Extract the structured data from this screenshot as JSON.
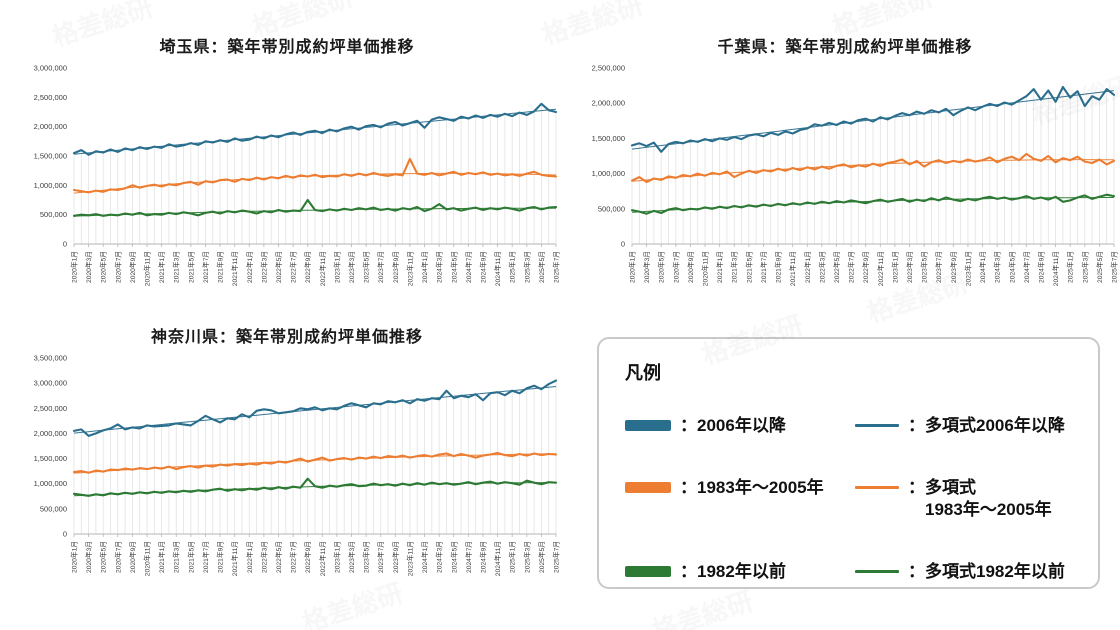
{
  "page": {
    "watermark_text": "格差総研"
  },
  "colors": {
    "blue": "#2a6e8e",
    "orange": "#ec7d31",
    "green": "#2d7a34",
    "dropline": "#e2e2e2",
    "axis": "#b5b5b5",
    "tick_label": "#3c3c3c"
  },
  "legend": {
    "title": "凡例",
    "items": [
      {
        "swatch": "thick",
        "color_key": "blue",
        "label": "：2006年以降"
      },
      {
        "swatch": "thin",
        "color_key": "blue",
        "label": "：多項式2006年以降"
      },
      {
        "swatch": "thick",
        "color_key": "orange",
        "label": "：1983年〜2005年"
      },
      {
        "swatch": "thin",
        "color_key": "orange",
        "label": "：多項式",
        "label2": "1983年〜2005年"
      },
      {
        "swatch": "thick",
        "color_key": "green",
        "label": "：1982年以前"
      },
      {
        "swatch": "thin",
        "color_key": "green",
        "label": "：多項式1982年以前"
      }
    ]
  },
  "chart_data": [
    {
      "type": "line",
      "title": "埼玉県：築年帯別成約坪単価推移",
      "ylabel": "",
      "xlabel": "",
      "ylim": [
        0,
        3000000
      ],
      "ytick_step": 500000,
      "grid": "droplines-vertical",
      "legend_position": "external-box",
      "x_labels": [
        "2020年1月",
        "2020年3月",
        "2020年5月",
        "2020年7月",
        "2020年9月",
        "2020年11月",
        "2021年1月",
        "2021年3月",
        "2021年5月",
        "2021年7月",
        "2021年9月",
        "2021年11月",
        "2022年1月",
        "2022年3月",
        "2022年5月",
        "2022年7月",
        "2022年9月",
        "2022年11月",
        "2023年1月",
        "2023年3月",
        "2023年5月",
        "2023年7月",
        "2023年9月",
        "2023年11月",
        "2024年1月",
        "2024年3月",
        "2024年5月",
        "2024年7月",
        "2024年9月",
        "2024年11月",
        "2025年1月",
        "2025年3月",
        "2025年5月",
        "2025年7月"
      ],
      "series": [
        {
          "name": "2006年以降",
          "color_key": "blue",
          "values": [
            1550000,
            1600000,
            1520000,
            1580000,
            1560000,
            1610000,
            1570000,
            1630000,
            1600000,
            1650000,
            1620000,
            1660000,
            1640000,
            1700000,
            1660000,
            1680000,
            1720000,
            1690000,
            1750000,
            1730000,
            1770000,
            1740000,
            1800000,
            1760000,
            1780000,
            1830000,
            1800000,
            1850000,
            1820000,
            1870000,
            1900000,
            1860000,
            1910000,
            1930000,
            1890000,
            1950000,
            1920000,
            1970000,
            2000000,
            1950000,
            2010000,
            2030000,
            1990000,
            2050000,
            2080000,
            2020000,
            2060000,
            2100000,
            1980000,
            2120000,
            2160000,
            2130000,
            2100000,
            2170000,
            2140000,
            2190000,
            2150000,
            2200000,
            2170000,
            2220000,
            2180000,
            2240000,
            2200000,
            2260000,
            2390000,
            2280000,
            2250000
          ]
        },
        {
          "name": "1983年〜2005年",
          "color_key": "orange",
          "values": [
            920000,
            900000,
            880000,
            910000,
            890000,
            930000,
            920000,
            950000,
            1000000,
            960000,
            990000,
            1010000,
            980000,
            1020000,
            1000000,
            1040000,
            1060000,
            1010000,
            1070000,
            1050000,
            1090000,
            1100000,
            1060000,
            1110000,
            1090000,
            1130000,
            1100000,
            1140000,
            1120000,
            1160000,
            1130000,
            1170000,
            1150000,
            1180000,
            1140000,
            1160000,
            1150000,
            1190000,
            1160000,
            1200000,
            1170000,
            1210000,
            1180000,
            1160000,
            1190000,
            1170000,
            1450000,
            1200000,
            1180000,
            1210000,
            1170000,
            1200000,
            1230000,
            1180000,
            1210000,
            1190000,
            1220000,
            1180000,
            1200000,
            1170000,
            1190000,
            1160000,
            1200000,
            1230000,
            1180000,
            1160000,
            1150000
          ]
        },
        {
          "name": "1982年以前",
          "color_key": "green",
          "values": [
            480000,
            500000,
            490000,
            510000,
            480000,
            500000,
            490000,
            520000,
            500000,
            530000,
            490000,
            510000,
            500000,
            530000,
            510000,
            540000,
            520000,
            490000,
            530000,
            550000,
            520000,
            560000,
            540000,
            570000,
            550000,
            520000,
            560000,
            540000,
            580000,
            550000,
            570000,
            560000,
            750000,
            580000,
            560000,
            590000,
            570000,
            600000,
            580000,
            610000,
            590000,
            620000,
            580000,
            600000,
            570000,
            610000,
            590000,
            630000,
            560000,
            600000,
            680000,
            590000,
            610000,
            570000,
            600000,
            620000,
            580000,
            610000,
            590000,
            620000,
            600000,
            570000,
            610000,
            630000,
            590000,
            620000,
            630000
          ]
        }
      ],
      "trend_series_names": [
        "多項式2006年以降",
        "多項式1983年〜2005年",
        "多項式1982年以前"
      ]
    },
    {
      "type": "line",
      "title": "千葉県：築年帯別成約坪単価推移",
      "ylabel": "",
      "xlabel": "",
      "ylim": [
        0,
        2500000
      ],
      "ytick_step": 500000,
      "grid": "droplines-vertical",
      "legend_position": "external-box",
      "x_labels": [
        "2020年1月",
        "2020年3月",
        "2020年5月",
        "2020年7月",
        "2020年9月",
        "2020年11月",
        "2021年1月",
        "2021年3月",
        "2021年5月",
        "2021年7月",
        "2021年9月",
        "2021年11月",
        "2022年1月",
        "2022年3月",
        "2022年5月",
        "2022年7月",
        "2022年9月",
        "2022年11月",
        "2023年1月",
        "2023年3月",
        "2023年5月",
        "2023年7月",
        "2023年9月",
        "2023年11月",
        "2024年1月",
        "2024年3月",
        "2024年5月",
        "2024年7月",
        "2024年9月",
        "2024年11月",
        "2025年1月",
        "2025年3月",
        "2025年5月",
        "2025年7月"
      ],
      "series": [
        {
          "name": "2006年以降",
          "color_key": "blue",
          "values": [
            1400000,
            1430000,
            1390000,
            1440000,
            1310000,
            1420000,
            1450000,
            1430000,
            1470000,
            1450000,
            1490000,
            1460000,
            1500000,
            1480000,
            1520000,
            1490000,
            1540000,
            1560000,
            1530000,
            1580000,
            1550000,
            1600000,
            1570000,
            1620000,
            1640000,
            1700000,
            1680000,
            1720000,
            1690000,
            1740000,
            1710000,
            1760000,
            1780000,
            1740000,
            1800000,
            1770000,
            1820000,
            1860000,
            1830000,
            1880000,
            1850000,
            1900000,
            1870000,
            1920000,
            1830000,
            1890000,
            1940000,
            1900000,
            1950000,
            1990000,
            1960000,
            2010000,
            1980000,
            2040000,
            2100000,
            2200000,
            2050000,
            2180000,
            2020000,
            2230000,
            2080000,
            2170000,
            1960000,
            2100000,
            2050000,
            2200000,
            2120000
          ]
        },
        {
          "name": "1983年〜2005年",
          "color_key": "orange",
          "values": [
            900000,
            950000,
            880000,
            930000,
            910000,
            960000,
            940000,
            980000,
            960000,
            1000000,
            970000,
            1010000,
            990000,
            1030000,
            950000,
            1000000,
            1040000,
            1010000,
            1050000,
            1030000,
            1070000,
            1040000,
            1080000,
            1050000,
            1090000,
            1060000,
            1100000,
            1070000,
            1110000,
            1130000,
            1090000,
            1120000,
            1100000,
            1140000,
            1110000,
            1150000,
            1170000,
            1200000,
            1130000,
            1180000,
            1100000,
            1160000,
            1190000,
            1150000,
            1180000,
            1160000,
            1200000,
            1170000,
            1190000,
            1230000,
            1160000,
            1210000,
            1240000,
            1190000,
            1280000,
            1210000,
            1180000,
            1250000,
            1160000,
            1220000,
            1190000,
            1240000,
            1170000,
            1150000,
            1200000,
            1130000,
            1180000
          ]
        },
        {
          "name": "1982年以前",
          "color_key": "green",
          "values": [
            480000,
            460000,
            430000,
            470000,
            440000,
            490000,
            510000,
            480000,
            500000,
            490000,
            520000,
            500000,
            530000,
            510000,
            540000,
            520000,
            550000,
            530000,
            560000,
            540000,
            570000,
            550000,
            580000,
            560000,
            590000,
            570000,
            600000,
            580000,
            610000,
            590000,
            620000,
            600000,
            580000,
            610000,
            630000,
            600000,
            620000,
            640000,
            600000,
            630000,
            610000,
            650000,
            620000,
            660000,
            630000,
            610000,
            640000,
            620000,
            650000,
            670000,
            640000,
            660000,
            630000,
            650000,
            680000,
            640000,
            660000,
            630000,
            670000,
            600000,
            620000,
            660000,
            690000,
            640000,
            670000,
            700000,
            680000
          ]
        }
      ],
      "trend_series_names": [
        "多項式2006年以降",
        "多項式1983年〜2005年",
        "多項式1982年以前"
      ]
    },
    {
      "type": "line",
      "title": "神奈川県：築年帯別成約坪単価推移",
      "ylabel": "",
      "xlabel": "",
      "ylim": [
        0,
        3500000
      ],
      "ytick_step": 500000,
      "grid": "droplines-vertical",
      "legend_position": "external-box",
      "x_labels": [
        "2020年1月",
        "2020年3月",
        "2020年5月",
        "2020年7月",
        "2020年9月",
        "2020年11月",
        "2021年1月",
        "2021年3月",
        "2021年5月",
        "2021年7月",
        "2021年9月",
        "2021年11月",
        "2022年1月",
        "2022年3月",
        "2022年5月",
        "2022年7月",
        "2022年9月",
        "2022年11月",
        "2023年1月",
        "2023年3月",
        "2023年5月",
        "2023年7月",
        "2023年9月",
        "2023年11月",
        "2024年1月",
        "2024年3月",
        "2024年5月",
        "2024年7月",
        "2024年9月",
        "2024年11月",
        "2025年1月",
        "2025年3月",
        "2025年5月",
        "2025年7月"
      ],
      "series": [
        {
          "name": "2006年以降",
          "color_key": "blue",
          "values": [
            2050000,
            2080000,
            1950000,
            2000000,
            2060000,
            2100000,
            2180000,
            2080000,
            2120000,
            2100000,
            2160000,
            2140000,
            2150000,
            2160000,
            2200000,
            2180000,
            2160000,
            2250000,
            2350000,
            2280000,
            2220000,
            2300000,
            2280000,
            2380000,
            2320000,
            2450000,
            2480000,
            2460000,
            2400000,
            2420000,
            2440000,
            2500000,
            2480000,
            2520000,
            2460000,
            2500000,
            2480000,
            2550000,
            2600000,
            2560000,
            2520000,
            2600000,
            2580000,
            2640000,
            2620000,
            2660000,
            2600000,
            2680000,
            2650000,
            2700000,
            2680000,
            2850000,
            2700000,
            2750000,
            2720000,
            2780000,
            2660000,
            2800000,
            2820000,
            2760000,
            2850000,
            2800000,
            2900000,
            2950000,
            2880000,
            2980000,
            3050000
          ]
        },
        {
          "name": "1983年〜2005年",
          "color_key": "orange",
          "values": [
            1230000,
            1250000,
            1220000,
            1260000,
            1240000,
            1280000,
            1270000,
            1300000,
            1280000,
            1310000,
            1290000,
            1320000,
            1300000,
            1340000,
            1290000,
            1330000,
            1350000,
            1320000,
            1360000,
            1340000,
            1380000,
            1360000,
            1390000,
            1370000,
            1400000,
            1380000,
            1420000,
            1400000,
            1440000,
            1420000,
            1460000,
            1500000,
            1440000,
            1480000,
            1520000,
            1460000,
            1490000,
            1510000,
            1480000,
            1520000,
            1500000,
            1540000,
            1510000,
            1550000,
            1530000,
            1560000,
            1520000,
            1550000,
            1570000,
            1540000,
            1580000,
            1600000,
            1550000,
            1590000,
            1560000,
            1520000,
            1560000,
            1580000,
            1610000,
            1570000,
            1550000,
            1590000,
            1560000,
            1600000,
            1570000,
            1590000,
            1580000
          ]
        },
        {
          "name": "1982年以前",
          "color_key": "green",
          "values": [
            800000,
            780000,
            760000,
            790000,
            770000,
            810000,
            790000,
            820000,
            800000,
            830000,
            810000,
            840000,
            820000,
            850000,
            830000,
            860000,
            840000,
            870000,
            850000,
            880000,
            900000,
            860000,
            890000,
            870000,
            900000,
            880000,
            920000,
            890000,
            930000,
            900000,
            940000,
            920000,
            1100000,
            950000,
            920000,
            960000,
            940000,
            970000,
            990000,
            950000,
            960000,
            1000000,
            970000,
            990000,
            960000,
            1000000,
            970000,
            1010000,
            980000,
            1020000,
            990000,
            1010000,
            980000,
            1000000,
            1030000,
            990000,
            1020000,
            1040000,
            1000000,
            1030000,
            1010000,
            980000,
            1060000,
            1020000,
            990000,
            1030000,
            1020000
          ]
        }
      ],
      "trend_series_names": [
        "多項式2006年以降",
        "多項式1983年〜2005年",
        "多項式1982年以前"
      ]
    }
  ]
}
